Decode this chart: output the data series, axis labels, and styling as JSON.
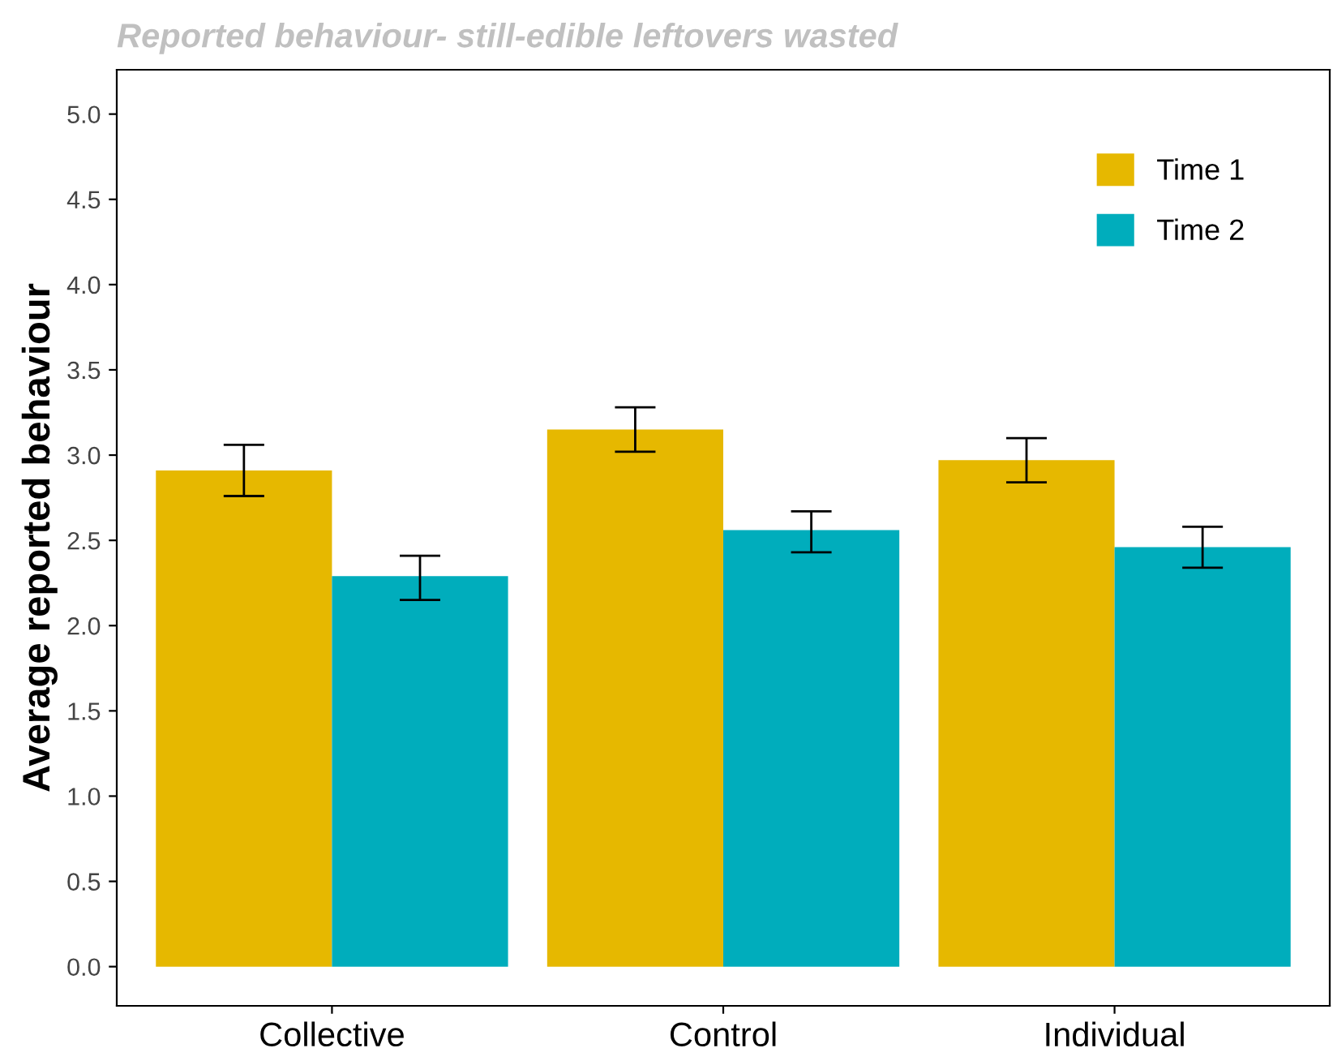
{
  "chart_data": {
    "type": "bar",
    "title": "Reported behaviour- still-edible leftovers wasted",
    "ylabel": "Average reported behaviour",
    "categories": [
      "Collective",
      "Control",
      "Individual"
    ],
    "series": [
      {
        "name": "Time 1",
        "color": "#e6b800",
        "values": [
          2.91,
          3.15,
          2.97
        ],
        "errors": [
          [
            2.76,
            3.06
          ],
          [
            3.02,
            3.28
          ],
          [
            2.84,
            3.1
          ]
        ]
      },
      {
        "name": "Time 2",
        "color": "#00adbc",
        "values": [
          2.29,
          2.56,
          2.46
        ],
        "errors": [
          [
            2.15,
            2.41
          ],
          [
            2.43,
            2.67
          ],
          [
            2.34,
            2.58
          ]
        ]
      }
    ],
    "ylim": [
      -0.23,
      5.26
    ],
    "yticks": [
      {
        "value": 0,
        "label": "0.0"
      },
      {
        "value": 0.5,
        "label": "0.5"
      },
      {
        "value": 1,
        "label": "1.0"
      },
      {
        "value": 1.5,
        "label": "1.5"
      },
      {
        "value": 2,
        "label": "2.0"
      },
      {
        "value": 2.5,
        "label": "2.5"
      },
      {
        "value": 3,
        "label": "3.0"
      },
      {
        "value": 3.5,
        "label": "3.5"
      },
      {
        "value": 4,
        "label": "4.0"
      },
      {
        "value": 4.5,
        "label": "4.5"
      },
      {
        "value": 5,
        "label": "5.0"
      }
    ],
    "grid": false,
    "legend": "top right"
  }
}
